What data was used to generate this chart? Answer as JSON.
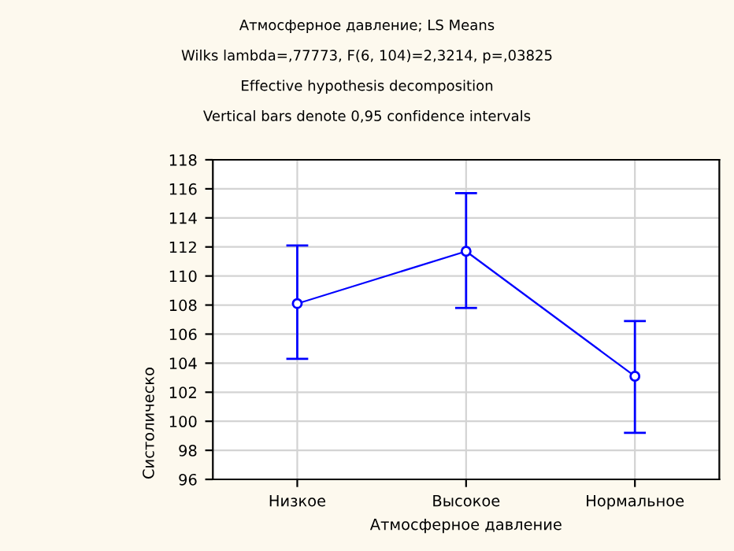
{
  "chart_data": {
    "type": "line",
    "title": "Атмосферное давление; LS Means",
    "subtitle": "Wilks lambda=,77773, F(6, 104)=2,3214, p=,03825",
    "annotations": [
      "Effective hypothesis decomposition",
      "Vertical bars denote 0,95 confidence intervals"
    ],
    "xlabel": "Атмосферное давление",
    "ylabel": "Систолическо",
    "categories": [
      "Низкое",
      "Высокое",
      "Нормальное"
    ],
    "series": [
      {
        "color": "#0000ff",
        "values": [
          108.1,
          111.7,
          103.1
        ],
        "errors": [
          [
            104.3,
            112.1
          ],
          [
            107.8,
            115.7
          ],
          [
            99.2,
            106.9
          ]
        ]
      }
    ],
    "ylim": [
      96,
      118
    ],
    "yticks": [
      96,
      98,
      100,
      102,
      104,
      106,
      108,
      110,
      112,
      114,
      116,
      118
    ],
    "grid": true,
    "marker": "circle",
    "line_style": "solid",
    "legend": false
  }
}
